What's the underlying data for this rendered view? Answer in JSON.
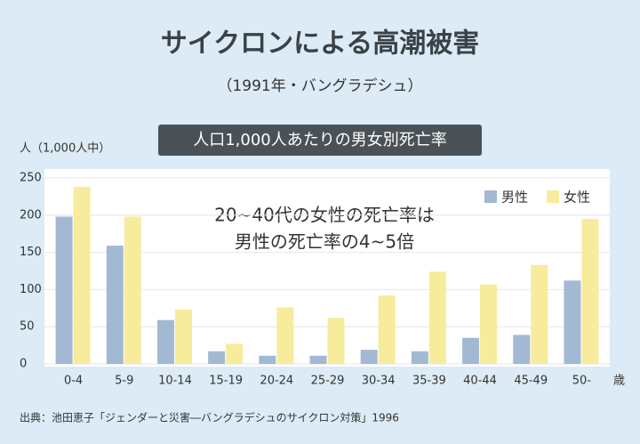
{
  "chart_data": {
    "type": "bar",
    "title": "サイクロンによる高潮被害",
    "subtitle": "（1991年・バングラデシュ）",
    "banner": "人口1,000人あたりの男女別死亡率",
    "y_label": "人（1,000人中）",
    "x_unit": "歳",
    "annotation": [
      "20~40代の女性の死亡率は",
      "男性の死亡率の4~5倍"
    ],
    "source": "出典：池田恵子「ジェンダーと災害―バングラデシュのサイクロン対策」1996",
    "categories": [
      "0-4",
      "5-9",
      "10-14",
      "15-19",
      "20-24",
      "25-29",
      "30-34",
      "35-39",
      "40-44",
      "45-49",
      "50-"
    ],
    "series": [
      {
        "name": "男性",
        "color": "#a3b9d3",
        "values": [
          198,
          159,
          59,
          17,
          11,
          11,
          19,
          17,
          35,
          39,
          112
        ]
      },
      {
        "name": "女性",
        "color": "#f7ec9c",
        "values": [
          238,
          198,
          73,
          27,
          76,
          62,
          92,
          124,
          107,
          133,
          195
        ]
      }
    ],
    "ylim": [
      0,
      250
    ],
    "yticks": [
      0,
      50,
      100,
      150,
      200,
      250
    ],
    "grid": true,
    "legend": "top-right"
  }
}
